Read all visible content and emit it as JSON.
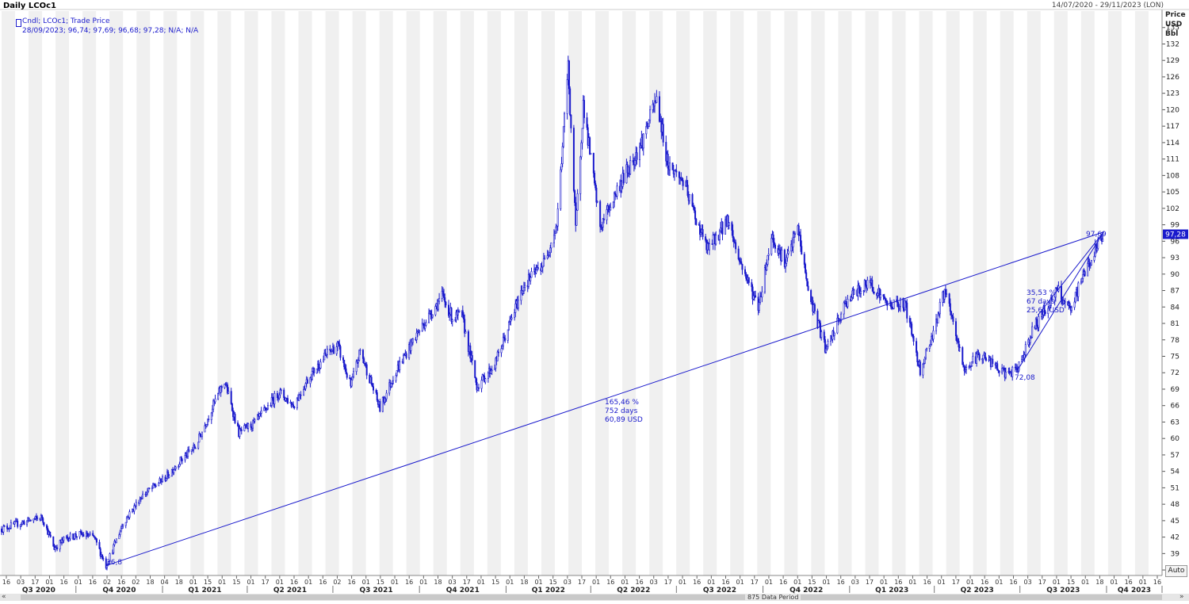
{
  "header": {
    "title": "Daily LCOc1",
    "date_range": "14/07/2020 - 29/11/2023 (LON)"
  },
  "legend": {
    "line1": "Cndl; LCOc1; Trade Price",
    "line2": "28/09/2023; 96,74; 97,69; 96,68; 97,28; N/A; N/A"
  },
  "axis": {
    "unit_line1": "Price",
    "unit_line2": "USD",
    "unit_line3": "Bbl",
    "auto_label": "Auto",
    "last_price_label": "97,28"
  },
  "footer": {
    "period_label": "875 Data Period"
  },
  "annotations": {
    "low_label": "36,8",
    "big_trend_pct": "165,46 %",
    "big_trend_days": "752 days",
    "big_trend_usd": "60,89 USD",
    "high_label": "97,69",
    "small_trend_pct": "35,53 %",
    "small_trend_days": "67 days",
    "small_trend_usd": "25,61 USD",
    "small_low_label": "72,08"
  },
  "colors": {
    "series": "#1a1acc",
    "grid_band": "#f0f0f0",
    "last_price_bg": "#1a1acc"
  },
  "chart_data": {
    "type": "candlestick",
    "title": "Daily LCOc1",
    "ylabel": "Price USD Bbl",
    "ylim": [
      35,
      138
    ],
    "y_ticks": [
      36,
      39,
      42,
      45,
      48,
      51,
      54,
      57,
      60,
      63,
      66,
      69,
      72,
      75,
      78,
      81,
      84,
      87,
      90,
      93,
      96,
      99,
      102,
      105,
      108,
      111,
      114,
      117,
      120,
      123,
      126,
      129,
      132,
      135
    ],
    "grid": true,
    "x_axis": "dates, 14/07/2020 - 29/11/2023",
    "quarters": [
      "Q3 2020",
      "Q4 2020",
      "Q1 2021",
      "Q2 2021",
      "Q3 2021",
      "Q4 2021",
      "Q1 2022",
      "Q2 2022",
      "Q3 2022",
      "Q4 2022",
      "Q1 2023",
      "Q2 2023",
      "Q3 2023",
      "Q4 2023"
    ],
    "day_ticks": [
      "16",
      "03",
      "17",
      "01",
      "16",
      "01",
      "16",
      "02",
      "16",
      "02",
      "18",
      "04",
      "18",
      "01",
      "15",
      "01",
      "15",
      "01",
      "17",
      "01",
      "16",
      "01",
      "16",
      "02",
      "16",
      "01",
      "15",
      "01",
      "16",
      "01",
      "18",
      "03",
      "17",
      "01",
      "15",
      "01",
      "18",
      "01",
      "15",
      "03",
      "17",
      "01",
      "16",
      "01",
      "16",
      "03",
      "17",
      "01",
      "16",
      "01",
      "16",
      "01",
      "17",
      "01",
      "16",
      "01",
      "15",
      "01",
      "16",
      "03",
      "17",
      "01",
      "16",
      "01",
      "16",
      "01",
      "17",
      "01",
      "16",
      "01",
      "16",
      "03",
      "17",
      "01",
      "15",
      "01",
      "18",
      "01",
      "16",
      "01",
      "16"
    ],
    "series": [
      {
        "name": "LCOc1",
        "points": [
          [
            "2020-07-14",
            43.5
          ],
          [
            "2020-08-01",
            44.5
          ],
          [
            "2020-08-26",
            45.6
          ],
          [
            "2020-09-08",
            40.0
          ],
          [
            "2020-09-20",
            41.8
          ],
          [
            "2020-10-05",
            42.5
          ],
          [
            "2020-10-20",
            42.0
          ],
          [
            "2020-11-02",
            36.8
          ],
          [
            "2020-11-20",
            44.5
          ],
          [
            "2020-12-10",
            49.5
          ],
          [
            "2021-01-05",
            53.0
          ],
          [
            "2021-01-20",
            56.0
          ],
          [
            "2021-02-05",
            58.5
          ],
          [
            "2021-02-25",
            66.5
          ],
          [
            "2021-03-08",
            70.5
          ],
          [
            "2021-03-23",
            61.0
          ],
          [
            "2021-04-10",
            63.0
          ],
          [
            "2021-05-05",
            68.5
          ],
          [
            "2021-05-20",
            66.0
          ],
          [
            "2021-06-05",
            71.0
          ],
          [
            "2021-06-25",
            75.5
          ],
          [
            "2021-07-06",
            77.0
          ],
          [
            "2021-07-20",
            69.5
          ],
          [
            "2021-07-30",
            76.0
          ],
          [
            "2021-08-20",
            65.5
          ],
          [
            "2021-09-05",
            72.0
          ],
          [
            "2021-09-28",
            79.0
          ],
          [
            "2021-10-25",
            86.0
          ],
          [
            "2021-11-05",
            82.0
          ],
          [
            "2021-11-15",
            82.5
          ],
          [
            "2021-12-01",
            69.5
          ],
          [
            "2021-12-20",
            73.5
          ],
          [
            "2022-01-20",
            88.0
          ],
          [
            "2022-02-10",
            92.0
          ],
          [
            "2022-02-24",
            99.0
          ],
          [
            "2022-03-08",
            127.9
          ],
          [
            "2022-03-16",
            98.0
          ],
          [
            "2022-03-24",
            121.0
          ],
          [
            "2022-04-11",
            98.5
          ],
          [
            "2022-05-01",
            106.0
          ],
          [
            "2022-05-25",
            114.0
          ],
          [
            "2022-06-10",
            122.0
          ],
          [
            "2022-06-22",
            110.0
          ],
          [
            "2022-07-08",
            107.0
          ],
          [
            "2022-07-20",
            101.0
          ],
          [
            "2022-08-03",
            94.5
          ],
          [
            "2022-08-25",
            100.0
          ],
          [
            "2022-09-05",
            93.0
          ],
          [
            "2022-09-26",
            84.0
          ],
          [
            "2022-10-10",
            97.0
          ],
          [
            "2022-10-25",
            92.0
          ],
          [
            "2022-11-07",
            98.5
          ],
          [
            "2022-11-18",
            87.0
          ],
          [
            "2022-12-07",
            76.0
          ],
          [
            "2022-12-30",
            85.5
          ],
          [
            "2023-01-23",
            88.5
          ],
          [
            "2023-02-10",
            84.5
          ],
          [
            "2023-03-01",
            84.5
          ],
          [
            "2023-03-17",
            72.5
          ],
          [
            "2023-03-31",
            79.5
          ],
          [
            "2023-04-12",
            87.0
          ],
          [
            "2023-05-03",
            72.5
          ],
          [
            "2023-05-20",
            75.5
          ],
          [
            "2023-06-12",
            72.0
          ],
          [
            "2023-06-27",
            72.1
          ],
          [
            "2023-07-15",
            80.0
          ],
          [
            "2023-08-10",
            87.0
          ],
          [
            "2023-08-24",
            83.0
          ],
          [
            "2023-09-05",
            89.5
          ],
          [
            "2023-09-28",
            97.28
          ]
        ]
      }
    ],
    "trendlines": [
      {
        "from": [
          "2020-11-02",
          36.8
        ],
        "to": [
          "2023-09-28",
          97.69
        ],
        "change_pct": "165,46 %",
        "days": "752 days",
        "change_usd": "60,89 USD"
      },
      {
        "from": [
          "2023-06-27",
          72.08
        ],
        "to": [
          "2023-09-28",
          97.69
        ],
        "change_pct": "35,53 %",
        "days": "67 days",
        "change_usd": "25,61 USD"
      }
    ]
  }
}
